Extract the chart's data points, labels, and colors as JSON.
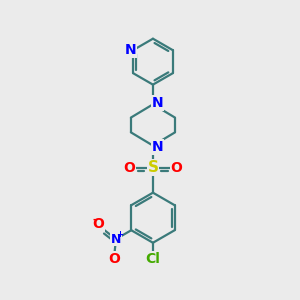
{
  "background_color": "#ebebeb",
  "bond_color": "#3a7a7a",
  "nitrogen_color": "#0000ff",
  "sulfur_color": "#cccc00",
  "oxygen_color": "#ff0000",
  "chlorine_color": "#44aa00",
  "line_width": 1.6,
  "font_size": 9,
  "fig_width": 3.0,
  "fig_height": 3.0,
  "dpi": 100,
  "xlim": [
    0,
    10
  ],
  "ylim": [
    0,
    10
  ]
}
